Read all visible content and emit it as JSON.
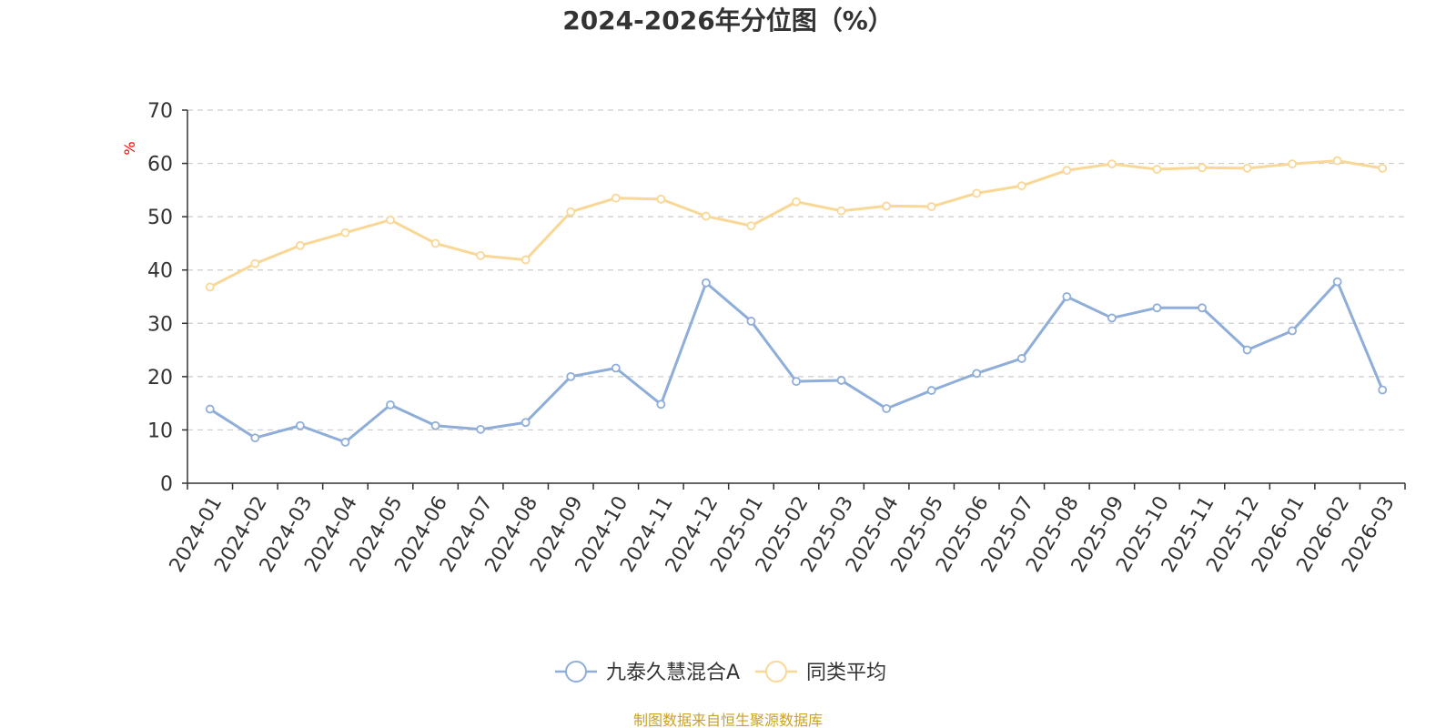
{
  "chart_data": {
    "type": "line",
    "title": "2024-2026年分位图（%）",
    "ylabel": "%",
    "xlabel": "",
    "ylim": [
      0,
      70
    ],
    "yticks": [
      0,
      10,
      20,
      30,
      40,
      50,
      60,
      70
    ],
    "grid": true,
    "legend_position": "bottom",
    "categories": [
      "2024-01",
      "2024-02",
      "2024-03",
      "2024-04",
      "2024-05",
      "2024-06",
      "2024-07",
      "2024-08",
      "2024-09",
      "2024-10",
      "2024-11",
      "2024-12",
      "2025-01",
      "2025-02",
      "2025-03",
      "2025-04",
      "2025-05",
      "2025-06",
      "2025-07",
      "2025-08",
      "2025-09",
      "2025-10",
      "2025-11",
      "2025-12",
      "2026-01",
      "2026-02",
      "2026-03"
    ],
    "series": [
      {
        "name": "九泰久慧混合A",
        "color": "#8eaed9",
        "values": [
          13.9,
          8.5,
          10.8,
          7.7,
          14.7,
          10.8,
          10.1,
          11.4,
          20.0,
          21.6,
          14.8,
          37.6,
          30.4,
          19.1,
          19.3,
          14.0,
          17.4,
          20.6,
          23.4,
          35.0,
          31.0,
          32.9,
          32.9,
          25.0,
          28.6,
          37.8,
          17.5
        ]
      },
      {
        "name": "同类平均",
        "color": "#f9d797",
        "values": [
          36.8,
          41.2,
          44.6,
          47.0,
          49.4,
          45.0,
          42.7,
          41.9,
          50.9,
          53.5,
          53.3,
          50.1,
          48.3,
          52.8,
          51.1,
          52.0,
          51.9,
          54.4,
          55.8,
          58.7,
          59.9,
          58.9,
          59.2,
          59.1,
          59.9,
          60.5,
          59.1
        ]
      }
    ]
  },
  "footer": {
    "source": "制图数据来自恒生聚源数据库"
  }
}
